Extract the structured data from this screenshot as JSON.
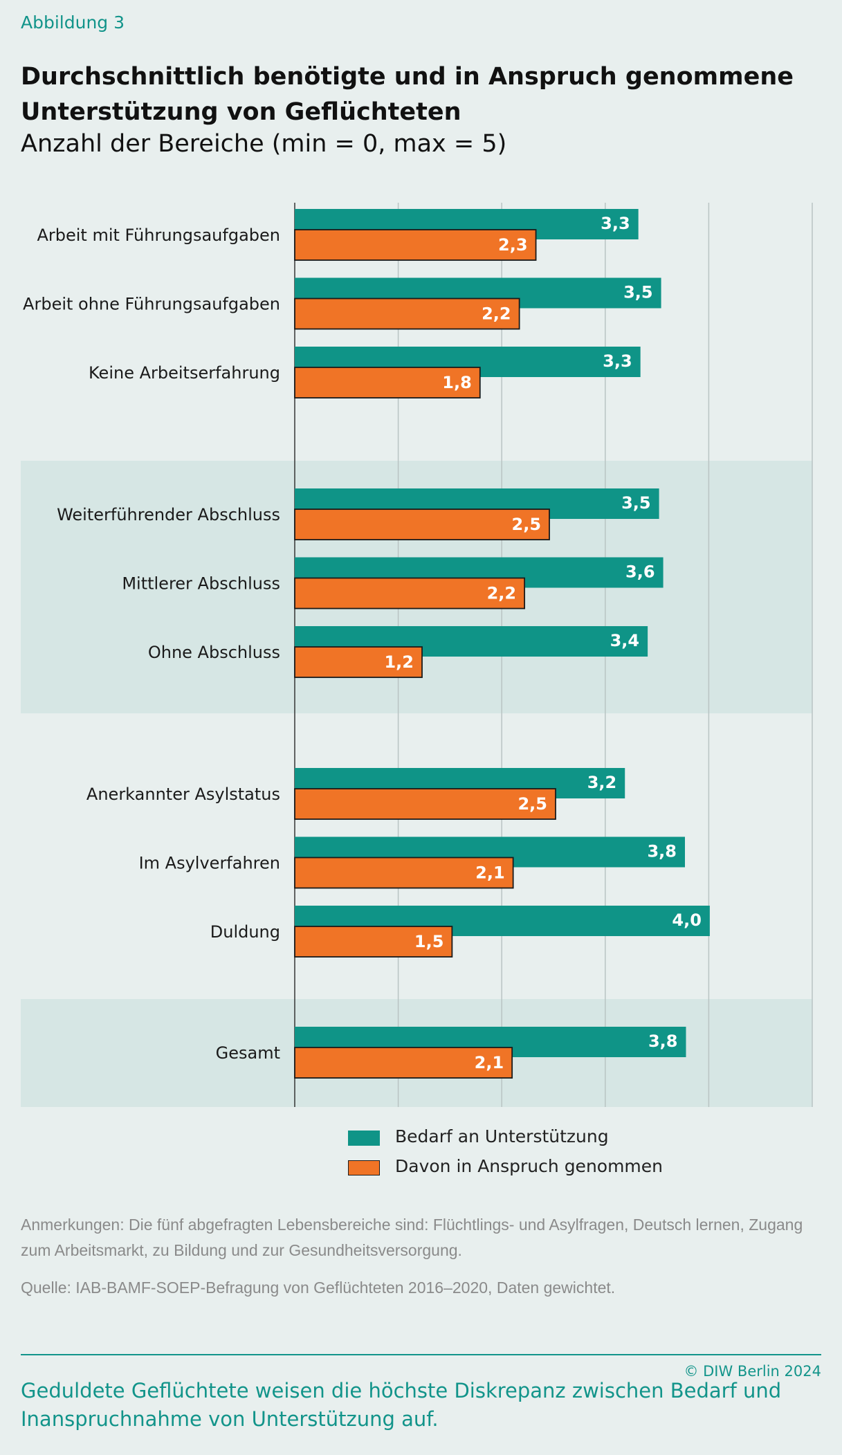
{
  "figure_label": "Abbildung 3",
  "chart_data": {
    "type": "bar",
    "orientation": "horizontal",
    "title": "Durchschnittlich benötigte und in Anspruch genommene Unterstützung von Geflüchteten",
    "subtitle": "Anzahl der Bereiche (min = 0, max = 5)",
    "xlim": [
      0,
      5
    ],
    "xticks": [
      "0",
      "1",
      "2",
      "3",
      "4",
      "5"
    ],
    "grid": true,
    "legend_position": "bottom",
    "groups": [
      {
        "shaded": false,
        "categories": [
          "Arbeit mit Führungsaufgaben",
          "Arbeit ohne Führungsaufgaben",
          "Keine Arbeitserfahrung"
        ]
      },
      {
        "shaded": true,
        "categories": [
          "Weiterführender Abschluss",
          "Mittlerer Abschluss",
          "Ohne Abschluss"
        ]
      },
      {
        "shaded": false,
        "categories": [
          "Anerkannter Asylstatus",
          "Im Asylverfahren",
          "Duldung"
        ]
      },
      {
        "shaded": true,
        "categories": [
          "Gesamt"
        ]
      }
    ],
    "categories": [
      "Arbeit mit Führungsaufgaben",
      "Arbeit ohne Führungsaufgaben",
      "Keine Arbeitserfahrung",
      "Weiterführender Abschluss",
      "Mittlerer Abschluss",
      "Ohne Abschluss",
      "Anerkannter Asylstatus",
      "Im Asylverfahren",
      "Duldung",
      "Gesamt"
    ],
    "series": [
      {
        "name": "Bedarf an Unterstützung",
        "color": "#0f9487",
        "values": [
          3.32,
          3.54,
          3.34,
          3.52,
          3.56,
          3.41,
          3.19,
          3.77,
          4.01,
          3.78
        ],
        "labels": [
          "3,3",
          "3,5",
          "3,3",
          "3,5",
          "3,6",
          "3,4",
          "3,2",
          "3,8",
          "4,0",
          "3,8"
        ]
      },
      {
        "name": "Davon in Anspruch genommen",
        "color": "#f07426",
        "values": [
          2.33,
          2.17,
          1.79,
          2.46,
          2.22,
          1.23,
          2.52,
          2.11,
          1.52,
          2.1
        ],
        "labels": [
          "2,3",
          "2,2",
          "1,8",
          "2,5",
          "2,2",
          "1,2",
          "2,5",
          "2,1",
          "1,5",
          "2,1"
        ]
      }
    ]
  },
  "notes": "Anmerkungen: Die fünf abgefragten Lebensbereiche sind: Flüchtlings- und Asylfragen, Deutsch lernen, Zugang zum Arbeitsmarkt, zu Bildung und zur Gesundheitsversorgung.",
  "source": "Quelle: IAB-BAMF-SOEP-Befragung von Geflüchteten 2016–2020, Daten gewichtet.",
  "copyright": "© DIW Berlin 2024",
  "summary": "Geduldete Geflüchtete weisen die höchste Diskrepanz zwischen Bedarf und Inanspruchnahme von Unterstützung auf."
}
